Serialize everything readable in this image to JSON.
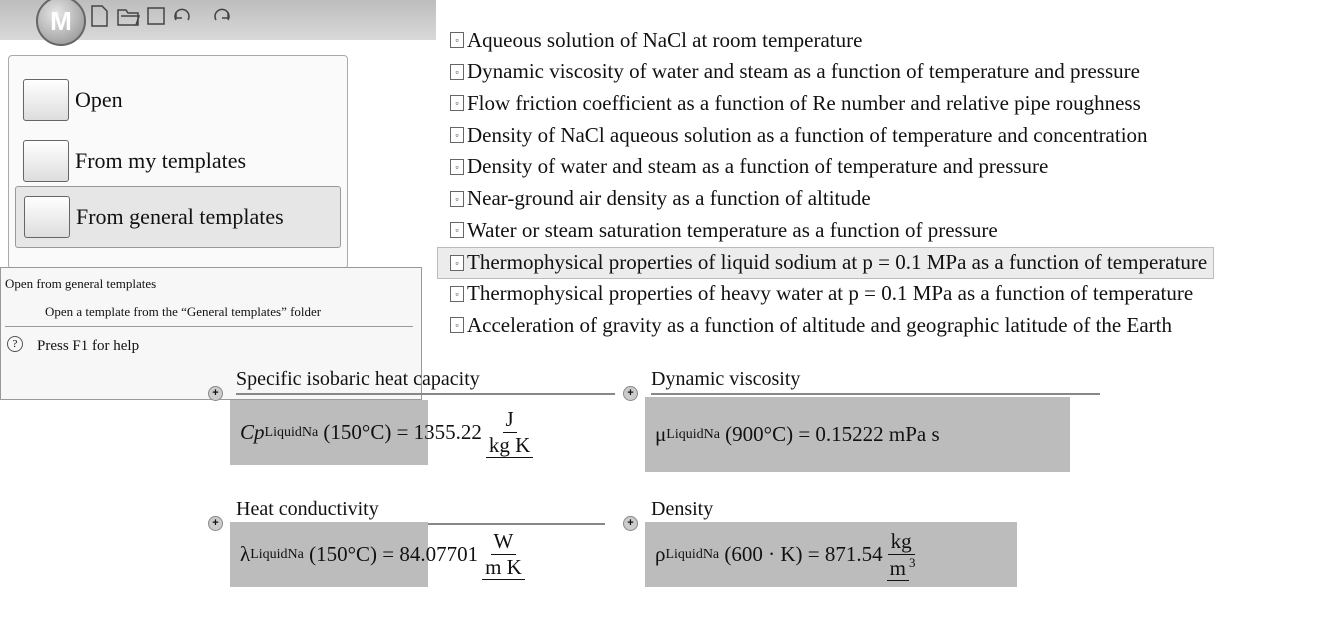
{
  "app": {
    "logo": "M"
  },
  "menu": {
    "items": [
      "Open",
      "From my templates",
      "From general templates"
    ],
    "selected": 2
  },
  "tooltip": {
    "title": "Open from general templates",
    "description": "Open a template from the “General templates” folder",
    "help": "Press F1 for help"
  },
  "templates": {
    "items": [
      "Aqueous solution of NaCl at room temperature",
      "Dynamic viscosity of water and steam as a function of temperature and pressure",
      "Flow friction coefficient as a function of Re number and relative pipe roughness",
      "Density of NaCl aqueous solution as a function of temperature and concentration",
      "Density of water and steam as a function of temperature and pressure",
      "Near-ground air density as a function of altitude",
      "Water or steam saturation temperature as a function of pressure",
      "Thermophysical properties of liquid sodium at p = 0.1 MPa as a function of temperature",
      "Thermophysical properties of heavy water at p = 0.1 MPa as a function of temperature",
      "Acceleration of gravity as a function of altitude and geographic latitude of the Earth"
    ],
    "selected": 7
  },
  "results": [
    {
      "heading": "Specific isobaric heat capacity",
      "symbol": "Cp",
      "subscript": "LiquidNa",
      "expression": " (150°C) = 1355.22",
      "unit_numerator": "J",
      "unit_denominator": "kg K"
    },
    {
      "heading": "Dynamic viscosity",
      "symbol": "μ",
      "subscript": "LiquidNa",
      "expression": " (900°C) = 0.15222 mPa s"
    },
    {
      "heading": "Heat conductivity",
      "symbol": "λ",
      "subscript": "LiquidNa",
      "expression": " (150°C) = 84.07701",
      "unit_numerator": "W",
      "unit_denominator": "m K"
    },
    {
      "heading": "Density",
      "symbol": "ρ",
      "subscript": "LiquidNa",
      "expression": " (600 · K) = 871.54",
      "unit_numerator": "kg",
      "unit_denominator": "m",
      "unit_exponent": "3"
    }
  ]
}
